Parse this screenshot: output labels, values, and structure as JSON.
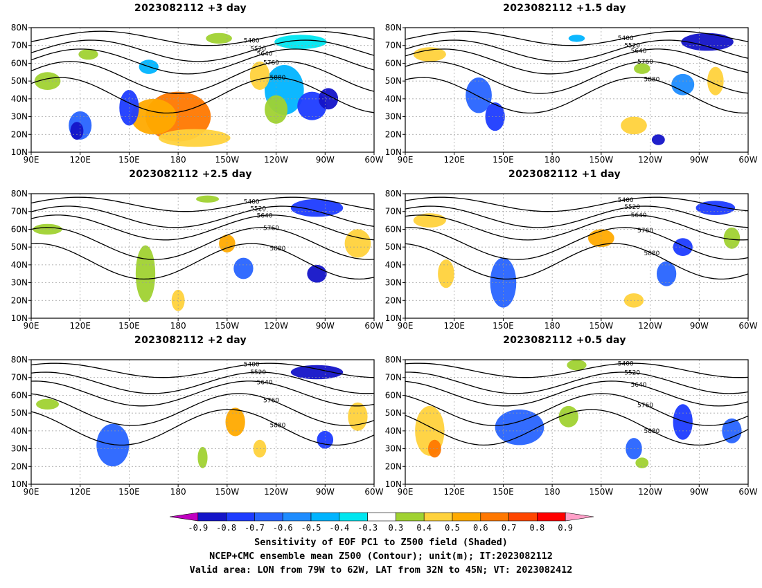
{
  "panels": [
    {
      "title": "2023082112 +3 day"
    },
    {
      "title": "2023082112 +1.5 day"
    },
    {
      "title": "2023082112 +2.5 day"
    },
    {
      "title": "2023082112 +1 day"
    },
    {
      "title": "2023082112 +2 day"
    },
    {
      "title": "2023082112 +0.5 day"
    }
  ],
  "caption": {
    "line1": "Sensitivity of EOF PC1 to Z500 field (Shaded)",
    "line2": "NCEP+CMC ensemble mean Z500 (Contour); unit(m); IT:2023082112",
    "line3": "Valid area: LON from 79W to 62W, LAT from 32N to 45N; VT: 2023082412"
  },
  "chart_data": {
    "type": "heatmap",
    "x_ticks": [
      "90E",
      "120E",
      "150E",
      "180",
      "150W",
      "120W",
      "90W",
      "60W"
    ],
    "y_ticks": [
      "10N",
      "20N",
      "30N",
      "40N",
      "50N",
      "60N",
      "70N",
      "80N"
    ],
    "lon_range": [
      90,
      300
    ],
    "lat_range": [
      10,
      80
    ],
    "contour_labels": [
      "5400",
      "5520",
      "5640",
      "5760",
      "5880"
    ],
    "colorbar": {
      "ticks": [
        "-0.9",
        "-0.8",
        "-0.7",
        "-0.6",
        "-0.5",
        "-0.4",
        "-0.3",
        "0.3",
        "0.4",
        "0.5",
        "0.6",
        "0.7",
        "0.8",
        "0.9"
      ],
      "colors": [
        "#c000c0",
        "#1414c8",
        "#1e3cff",
        "#2864ff",
        "#1e8cff",
        "#00b4ff",
        "#00e6f0",
        "#ffffff",
        "#a0d232",
        "#ffd23c",
        "#ffaa00",
        "#ff7800",
        "#ff4600",
        "#ff0000",
        "#ffa0c8"
      ]
    }
  }
}
